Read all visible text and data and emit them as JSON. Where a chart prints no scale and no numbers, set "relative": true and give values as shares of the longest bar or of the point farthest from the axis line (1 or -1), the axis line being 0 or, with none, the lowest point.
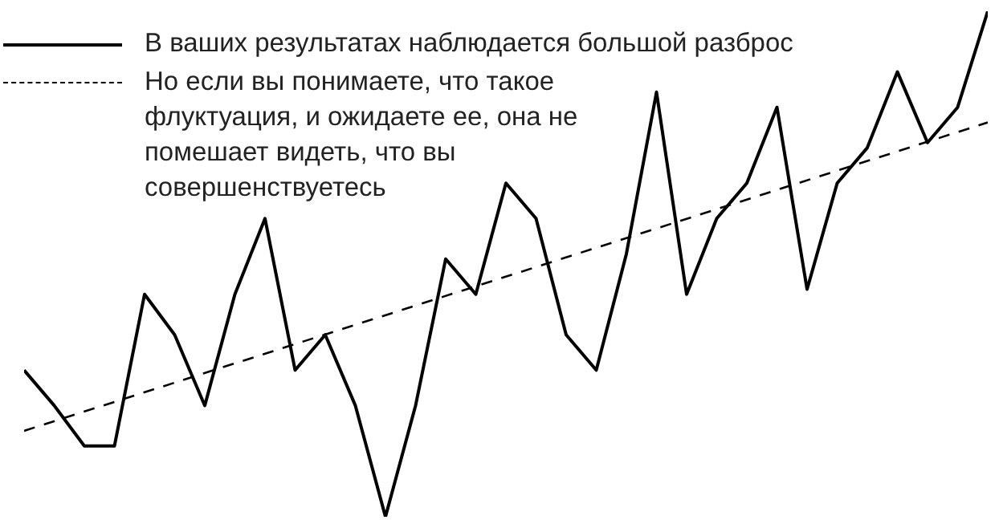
{
  "chart_data": {
    "type": "line",
    "relative": true,
    "legend": "top left",
    "marker": "none",
    "categories": [
      null,
      null,
      null,
      null,
      null,
      null,
      null,
      null,
      null,
      null,
      null,
      null,
      null,
      null,
      null,
      null,
      null,
      null,
      null,
      null,
      null,
      null,
      null,
      null,
      null,
      null,
      null,
      null,
      null,
      null,
      null,
      null,
      null
    ],
    "series": [
      {
        "name": "В ваших результатах наблюдается большой разброс",
        "color": "#000000",
        "line_style": "solid",
        "values": [
          0.29,
          0.22,
          0.14,
          0.14,
          0.44,
          0.36,
          0.22,
          0.44,
          0.59,
          0.29,
          0.36,
          0.22,
          0,
          0.22,
          0.51,
          0.44,
          0.66,
          0.59,
          0.36,
          0.29,
          0.52,
          0.84,
          0.44,
          0.59,
          0.66,
          0.81,
          0.45,
          0.66,
          0.73,
          0.88,
          0.74,
          0.81,
          1
        ]
      },
      {
        "name": "Но если вы понимаете, что такое флуктуация, и ожидаете ее, она не помешает видеть, что вы совершенствуетесь",
        "type": "line",
        "color": "#000000",
        "line_style": "dashed",
        "values": [
          0.17,
          null,
          null,
          null,
          null,
          null,
          null,
          null,
          null,
          null,
          null,
          null,
          null,
          null,
          null,
          null,
          null,
          null,
          null,
          null,
          null,
          null,
          null,
          null,
          null,
          null,
          null,
          null,
          null,
          null,
          null,
          null,
          0.78
        ]
      }
    ]
  }
}
